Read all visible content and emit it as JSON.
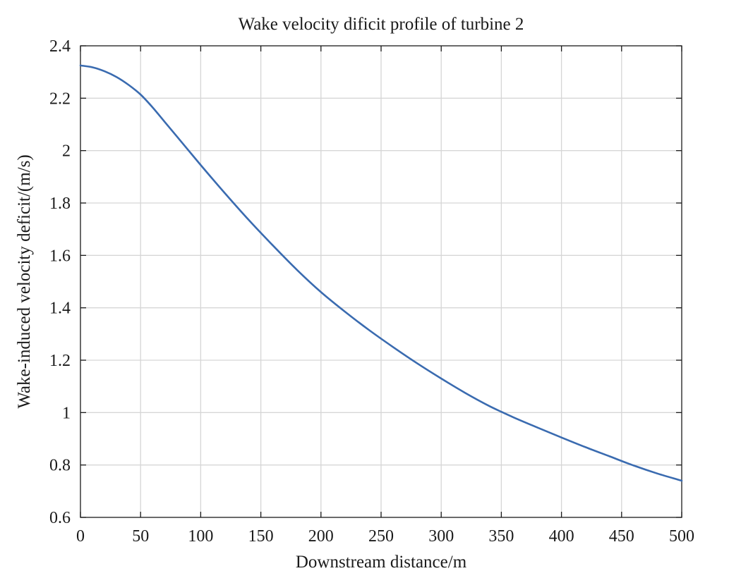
{
  "chart_data": {
    "type": "line",
    "title": "Wake velocity dificit profile of turbine 2",
    "xlabel": "Downstream distance/m",
    "ylabel": "Wake-induced velocity deficit/(m/s)",
    "xlim": [
      0,
      500
    ],
    "ylim": [
      0.6,
      2.4
    ],
    "xticks": [
      0,
      50,
      100,
      150,
      200,
      250,
      300,
      350,
      400,
      450,
      500
    ],
    "yticks": [
      0.6,
      0.8,
      1,
      1.2,
      1.4,
      1.6,
      1.8,
      2,
      2.2,
      2.4
    ],
    "xtick_labels": [
      "0",
      "50",
      "100",
      "150",
      "200",
      "250",
      "300",
      "350",
      "400",
      "450",
      "500"
    ],
    "ytick_labels": [
      "0.6",
      "0.8",
      "1",
      "1.2",
      "1.4",
      "1.6",
      "1.8",
      "2",
      "2.2",
      "2.4"
    ],
    "grid": true,
    "series": [
      {
        "color": "#3a6bb0",
        "x": [
          0,
          10,
          20,
          30,
          40,
          50,
          60,
          70,
          80,
          90,
          100,
          120,
          140,
          160,
          180,
          200,
          220,
          240,
          260,
          280,
          300,
          320,
          340,
          350,
          360,
          380,
          400,
          420,
          440,
          460,
          480,
          500
        ],
        "y": [
          2.325,
          2.318,
          2.303,
          2.281,
          2.251,
          2.214,
          2.165,
          2.11,
          2.055,
          2.0,
          1.945,
          1.838,
          1.735,
          1.638,
          1.545,
          1.46,
          1.385,
          1.315,
          1.25,
          1.188,
          1.13,
          1.075,
          1.025,
          1.003,
          0.982,
          0.943,
          0.905,
          0.868,
          0.833,
          0.798,
          0.767,
          0.74
        ]
      }
    ]
  }
}
